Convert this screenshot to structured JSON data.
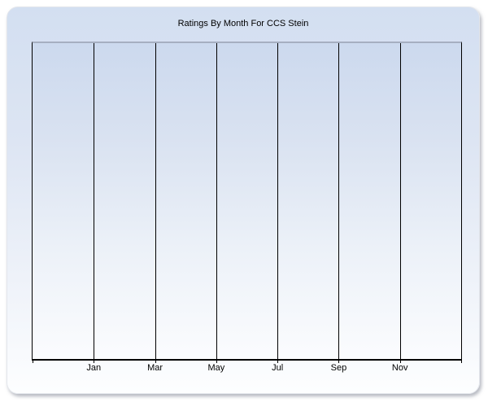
{
  "chart": {
    "title": "Ratings By Month For CCS Stein"
  },
  "chart_data": {
    "type": "line",
    "title": "Ratings By Month For CCS Stein",
    "categories": [
      "Jan",
      "Mar",
      "May",
      "Jul",
      "Sep",
      "Nov"
    ],
    "series": [],
    "xlabel": "",
    "ylabel": "",
    "x_intervals": 7,
    "grid": "vertical-only",
    "legend": "none",
    "y_axis_labels": "none",
    "plot_empty": true
  },
  "colors": {
    "panel_gradient_top": "#d3dff1",
    "panel_gradient_bottom": "#fdfeff",
    "plot_gradient_top": "#ccd9ee",
    "plot_gradient_bottom": "#fbfcfe",
    "plot_top_border": "#a6afc1",
    "axis_and_grid": "#000000",
    "page_background": "#ffffff"
  }
}
